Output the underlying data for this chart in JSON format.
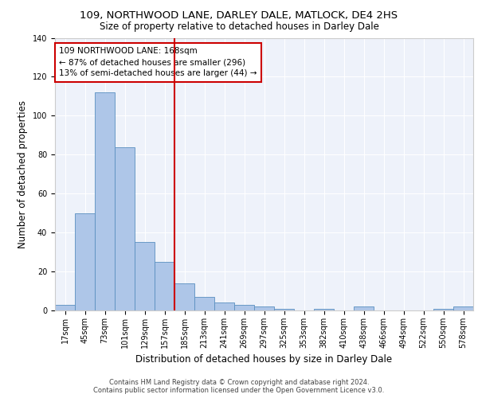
{
  "title_line1": "109, NORTHWOOD LANE, DARLEY DALE, MATLOCK, DE4 2HS",
  "title_line2": "Size of property relative to detached houses in Darley Dale",
  "xlabel": "Distribution of detached houses by size in Darley Dale",
  "ylabel": "Number of detached properties",
  "footer_line1": "Contains HM Land Registry data © Crown copyright and database right 2024.",
  "footer_line2": "Contains public sector information licensed under the Open Government Licence v3.0.",
  "bin_labels": [
    "17sqm",
    "45sqm",
    "73sqm",
    "101sqm",
    "129sqm",
    "157sqm",
    "185sqm",
    "213sqm",
    "241sqm",
    "269sqm",
    "297sqm",
    "325sqm",
    "353sqm",
    "382sqm",
    "410sqm",
    "438sqm",
    "466sqm",
    "494sqm",
    "522sqm",
    "550sqm",
    "578sqm"
  ],
  "bar_values": [
    3,
    50,
    112,
    84,
    35,
    25,
    14,
    7,
    4,
    3,
    2,
    1,
    0,
    1,
    0,
    2,
    0,
    0,
    0,
    1,
    2
  ],
  "bar_color": "#aec6e8",
  "bar_edge_color": "#5a8fc0",
  "vline_color": "#cc0000",
  "annotation_text": "109 NORTHWOOD LANE: 168sqm\n← 87% of detached houses are smaller (296)\n13% of semi-detached houses are larger (44) →",
  "annotation_box_color": "#ffffff",
  "annotation_box_edge_color": "#cc0000",
  "ylim": [
    0,
    140
  ],
  "yticks": [
    0,
    20,
    40,
    60,
    80,
    100,
    120,
    140
  ],
  "background_color": "#eef2fa",
  "grid_color": "#ffffff",
  "title_fontsize": 9.5,
  "subtitle_fontsize": 8.5,
  "ylabel_fontsize": 8.5,
  "xlabel_fontsize": 8.5,
  "annotation_fontsize": 7.5,
  "tick_fontsize": 7,
  "footer_fontsize": 6.0
}
